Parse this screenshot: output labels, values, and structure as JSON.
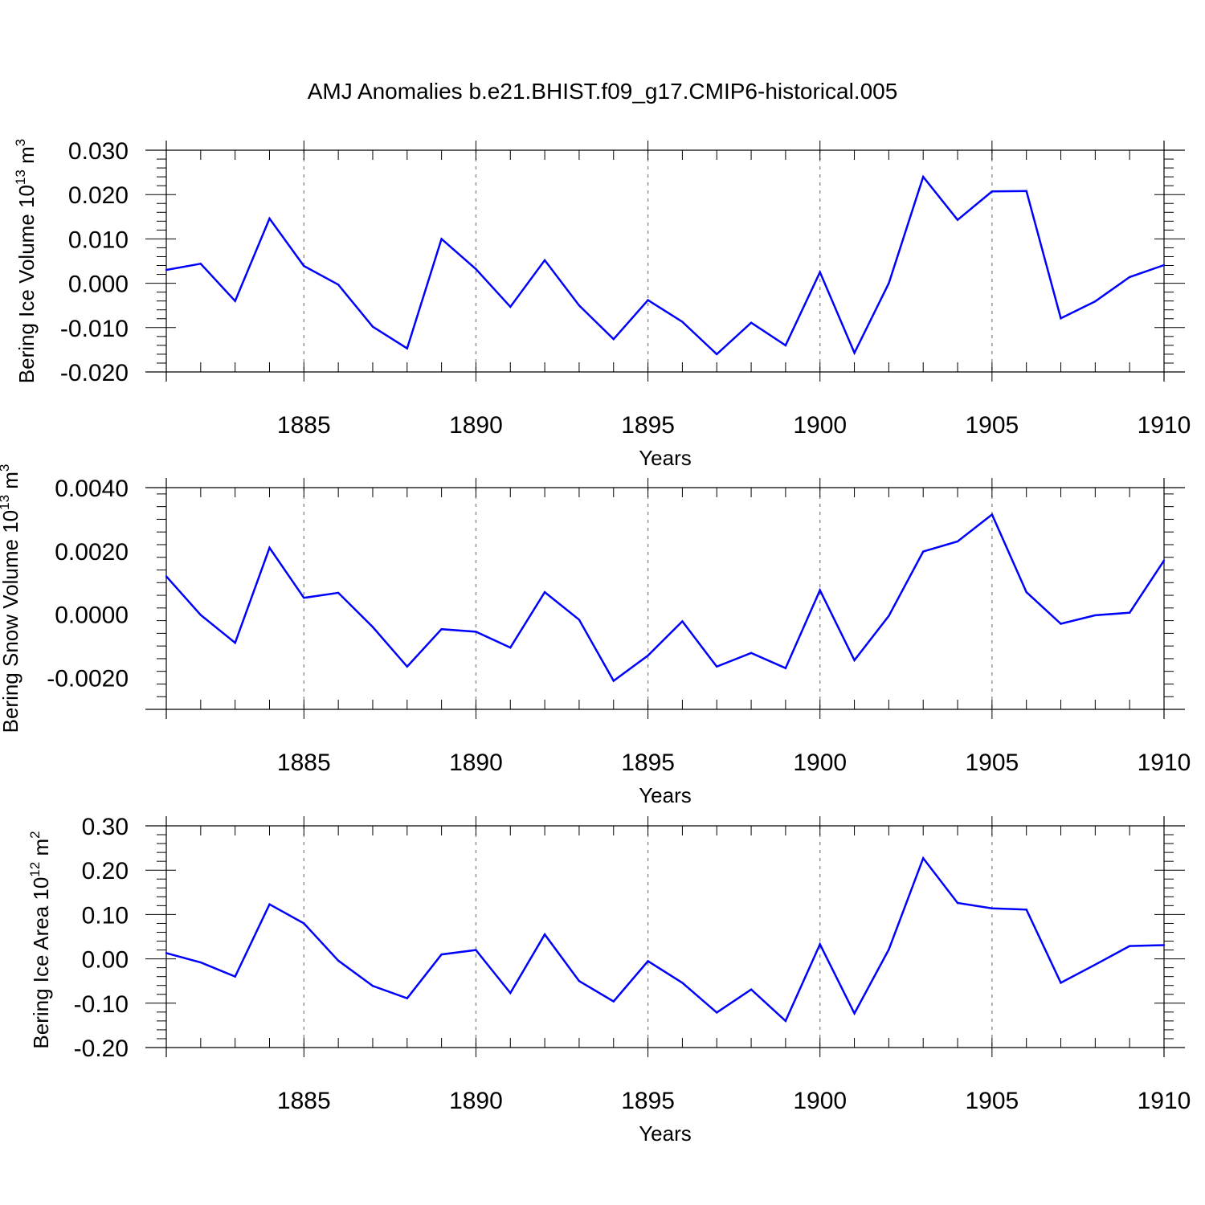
{
  "title": "AMJ Anomalies b.e21.BHIST.f09_g17.CMIP6-historical.005",
  "chart_data": [
    {
      "type": "line",
      "ylabel": "Bering Ice Volume 10",
      "ylabel_sup": "13",
      "ylabel_unit": " m",
      "ylabel_unit_sup": "3",
      "xlabel": "Years",
      "xlim": [
        1881,
        1910
      ],
      "ylim": [
        -0.02,
        0.03
      ],
      "yticks": [
        -0.02,
        -0.01,
        0.0,
        0.01,
        0.02,
        0.03
      ],
      "ytick_labels": [
        "-0.020",
        "-0.010",
        "0.000",
        "0.010",
        "0.020",
        "0.030"
      ],
      "xticks": [
        1885,
        1890,
        1895,
        1900,
        1905,
        1910
      ],
      "xtick_labels": [
        "1885",
        "1890",
        "1895",
        "1900",
        "1905",
        "1910"
      ],
      "color": "#0000ff",
      "x": [
        1881,
        1882,
        1883,
        1884,
        1885,
        1886,
        1887,
        1888,
        1889,
        1890,
        1891,
        1892,
        1893,
        1894,
        1895,
        1896,
        1897,
        1898,
        1899,
        1900,
        1901,
        1902,
        1903,
        1904,
        1905,
        1906,
        1907,
        1908,
        1909,
        1910
      ],
      "values": [
        0.003,
        0.0044,
        -0.004,
        0.0146,
        0.0039,
        -0.0003,
        -0.0098,
        -0.0147,
        0.01,
        0.0032,
        -0.0053,
        0.0052,
        -0.005,
        -0.0126,
        -0.0038,
        -0.0087,
        -0.016,
        -0.0089,
        -0.014,
        0.0025,
        -0.0157,
        0.0,
        0.024,
        0.0143,
        0.0207,
        0.0208,
        -0.0079,
        -0.0041,
        0.0014,
        0.0041
      ]
    },
    {
      "type": "line",
      "ylabel": "Bering Snow Volume 10",
      "ylabel_sup": "13",
      "ylabel_unit": " m",
      "ylabel_unit_sup": "3",
      "xlabel": "Years",
      "xlim": [
        1881,
        1910
      ],
      "ylim": [
        -0.003,
        0.004
      ],
      "yticks": [
        -0.002,
        0.0,
        0.002,
        0.004
      ],
      "ytick_labels": [
        "-0.0020",
        "0.0000",
        "0.0020",
        "0.0040"
      ],
      "xticks": [
        1885,
        1890,
        1895,
        1900,
        1905,
        1910
      ],
      "xtick_labels": [
        "1885",
        "1890",
        "1895",
        "1900",
        "1905",
        "1910"
      ],
      "color": "#0000ff",
      "x": [
        1881,
        1882,
        1883,
        1884,
        1885,
        1886,
        1887,
        1888,
        1889,
        1890,
        1891,
        1892,
        1893,
        1894,
        1895,
        1896,
        1897,
        1898,
        1899,
        1900,
        1901,
        1902,
        1903,
        1904,
        1905,
        1906,
        1907,
        1908,
        1909,
        1910
      ],
      "values": [
        0.0012,
        -2e-05,
        -0.0009,
        0.0021,
        0.00052,
        0.00068,
        -0.0004,
        -0.00165,
        -0.00047,
        -0.00055,
        -0.00105,
        0.0007,
        -0.00017,
        -0.0021,
        -0.0013,
        -0.00022,
        -0.00165,
        -0.00122,
        -0.0017,
        0.00076,
        -0.00145,
        -5e-05,
        0.00198,
        0.0023,
        0.00315,
        0.0007,
        -0.0003,
        -3e-05,
        5e-05,
        0.0017
      ]
    },
    {
      "type": "line",
      "ylabel": "Bering Ice Area 10",
      "ylabel_sup": "12",
      "ylabel_unit": " m",
      "ylabel_unit_sup": "2",
      "xlabel": "Years",
      "xlim": [
        1881,
        1910
      ],
      "ylim": [
        -0.2,
        0.3
      ],
      "yticks": [
        -0.2,
        -0.1,
        0.0,
        0.1,
        0.2,
        0.3
      ],
      "ytick_labels": [
        "-0.20",
        "-0.10",
        "0.00",
        "0.10",
        "0.20",
        "0.30"
      ],
      "xticks": [
        1885,
        1890,
        1895,
        1900,
        1905,
        1910
      ],
      "xtick_labels": [
        "1885",
        "1890",
        "1895",
        "1900",
        "1905",
        "1910"
      ],
      "color": "#0000ff",
      "x": [
        1881,
        1882,
        1883,
        1884,
        1885,
        1886,
        1887,
        1888,
        1889,
        1890,
        1891,
        1892,
        1893,
        1894,
        1895,
        1896,
        1897,
        1898,
        1899,
        1900,
        1901,
        1902,
        1903,
        1904,
        1905,
        1906,
        1907,
        1908,
        1909,
        1910
      ],
      "values": [
        0.013,
        -0.008,
        -0.04,
        0.123,
        0.08,
        -0.004,
        -0.061,
        -0.089,
        0.01,
        0.02,
        -0.077,
        0.055,
        -0.05,
        -0.096,
        -0.005,
        -0.054,
        -0.121,
        -0.069,
        -0.14,
        0.033,
        -0.123,
        0.021,
        0.227,
        0.126,
        0.114,
        0.111,
        -0.054,
        -0.013,
        0.029,
        0.031
      ]
    }
  ]
}
